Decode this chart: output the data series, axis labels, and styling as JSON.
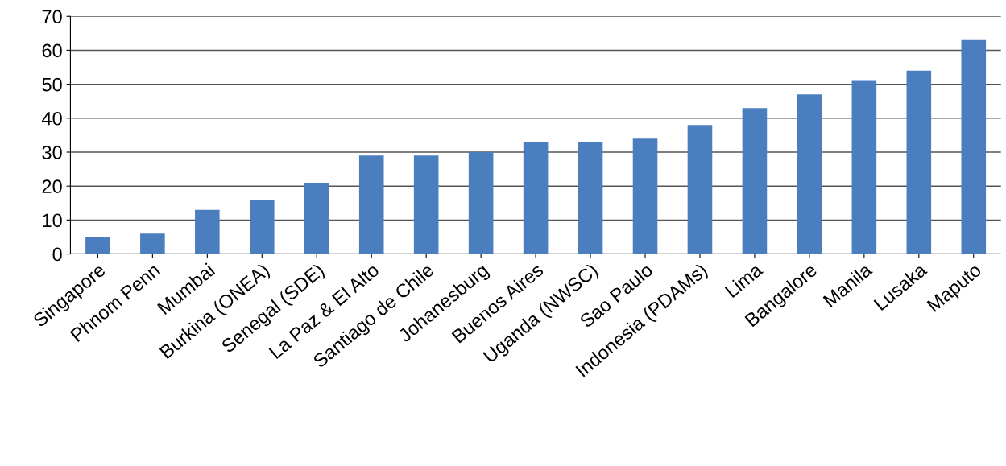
{
  "chart_data": {
    "type": "bar",
    "categories": [
      "Singapore",
      "Phnom Penn",
      "Mumbai",
      "Burkina (ONEA)",
      "Senegal (SDE)",
      "La Paz & El Alto",
      "Santiago de Chile",
      "Johanesburg",
      "Buenos Aires",
      "Uganda (NWSC)",
      "Sao Paulo",
      "Indonesia (PDAMs)",
      "Lima",
      "Bangalore",
      "Manila",
      "Lusaka",
      "Maputo"
    ],
    "values": [
      5,
      6,
      13,
      16,
      21,
      29,
      29,
      30,
      33,
      33,
      34,
      38,
      43,
      47,
      51,
      54,
      63
    ],
    "color": "#4a7ebf",
    "ylim": [
      0,
      70
    ],
    "yticks": [
      0,
      10,
      20,
      30,
      40,
      50,
      60,
      70
    ],
    "grid": "y",
    "legend": false
  }
}
